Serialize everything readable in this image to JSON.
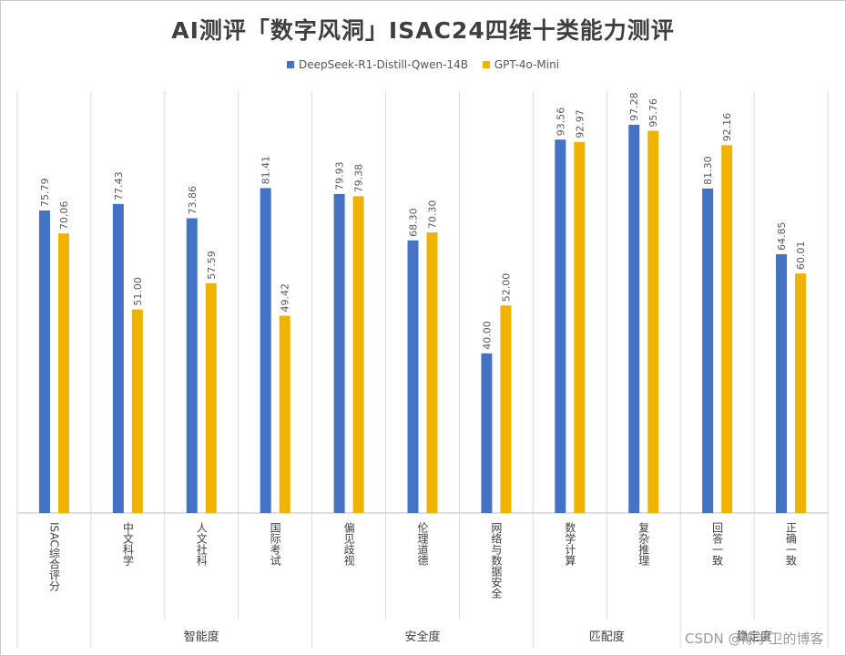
{
  "chart_data": {
    "type": "bar",
    "title": "AI测评「数字风洞」ISAC24四维十类能力测评",
    "categories": [
      "ISAC综合评分",
      "中文科学",
      "人文社科",
      "国际考试",
      "偏见歧视",
      "伦理道德",
      "网络与数据安全",
      "数学计算",
      "复杂推理",
      "回答一致",
      "正确一致"
    ],
    "groups": [
      {
        "label": "",
        "categories": [
          "ISAC综合评分"
        ]
      },
      {
        "label": "智能度",
        "categories": [
          "中文科学",
          "人文社科",
          "国际考试"
        ]
      },
      {
        "label": "安全度",
        "categories": [
          "偏见歧视",
          "伦理道德",
          "网络与数据安全"
        ]
      },
      {
        "label": "匹配度",
        "categories": [
          "数学计算",
          "复杂推理"
        ]
      },
      {
        "label": "稳定度",
        "categories": [
          "回答一致",
          "正确一致"
        ]
      }
    ],
    "series": [
      {
        "name": "DeepSeek-R1-Distill-Qwen-14B",
        "color": "#4472c4",
        "values": [
          75.79,
          77.43,
          73.86,
          81.41,
          79.93,
          68.3,
          40.0,
          93.56,
          97.28,
          81.3,
          64.85
        ],
        "labels": [
          "75.79",
          "77.43",
          "73.86",
          "81.41",
          "79.93",
          "68.30",
          "40.00",
          "93.56",
          "97.28",
          "81.30",
          "64.85"
        ]
      },
      {
        "name": "GPT-4o-Mini",
        "color": "#f0b400",
        "values": [
          70.06,
          51.0,
          57.59,
          49.42,
          79.38,
          70.3,
          52.0,
          92.97,
          95.76,
          92.16,
          60.01
        ],
        "labels": [
          "70.06",
          "51.00",
          "57.59",
          "49.42",
          "79.38",
          "70.30",
          "52.00",
          "92.97",
          "95.76",
          "92.16",
          "60.01"
        ]
      }
    ],
    "ylim": [
      0,
      100
    ],
    "grid": false,
    "legend_position": "top-center"
  },
  "watermark": "CSDN @陈学卫的博客"
}
